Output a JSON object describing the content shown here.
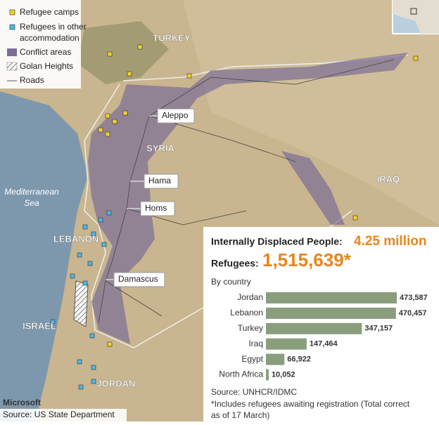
{
  "legend": [
    {
      "label": [
        "Refugee camps"
      ]
    },
    {
      "label": [
        "Refugees in other",
        "accommodation"
      ]
    },
    {
      "label": [
        "Conflict areas"
      ]
    },
    {
      "label": [
        "Golan Heights"
      ]
    },
    {
      "label": [
        "Roads"
      ]
    }
  ],
  "map_labels": {
    "countries": [
      "TURKEY",
      "SYRIA",
      "IRAQ",
      "LEBANON",
      "ISRAEL",
      "JORDAN"
    ],
    "sea": [
      "Mediterranean",
      "Sea"
    ],
    "cities": [
      "Aleppo",
      "Hama",
      "Homs",
      "Damascus"
    ]
  },
  "panel": {
    "idp_label": "Internally Displaced People:",
    "idp_value": "4.25 million",
    "refugees_label": "Refugees:",
    "refugees_value": "1,515,639*",
    "subtitle": "By country",
    "source": "Source: UNHCR/IDMC",
    "note": [
      "*Includes refugees awaiting registration  (Total correct",
      "as of 17 March)"
    ]
  },
  "chart_data": {
    "type": "bar",
    "orientation": "horizontal",
    "categories": [
      "Jordan",
      "Lebanon",
      "Turkey",
      "Iraq",
      "Egypt",
      "North Africa"
    ],
    "values": [
      473587,
      470457,
      347157,
      147464,
      66922,
      10052
    ],
    "value_labels": [
      "473,587",
      "470,457",
      "347,157",
      "147,464",
      "66,922",
      "10,052"
    ],
    "color": "#8a9e7d"
  },
  "credits": {
    "provider": "Microsoft",
    "source": "Source: US State Department"
  }
}
